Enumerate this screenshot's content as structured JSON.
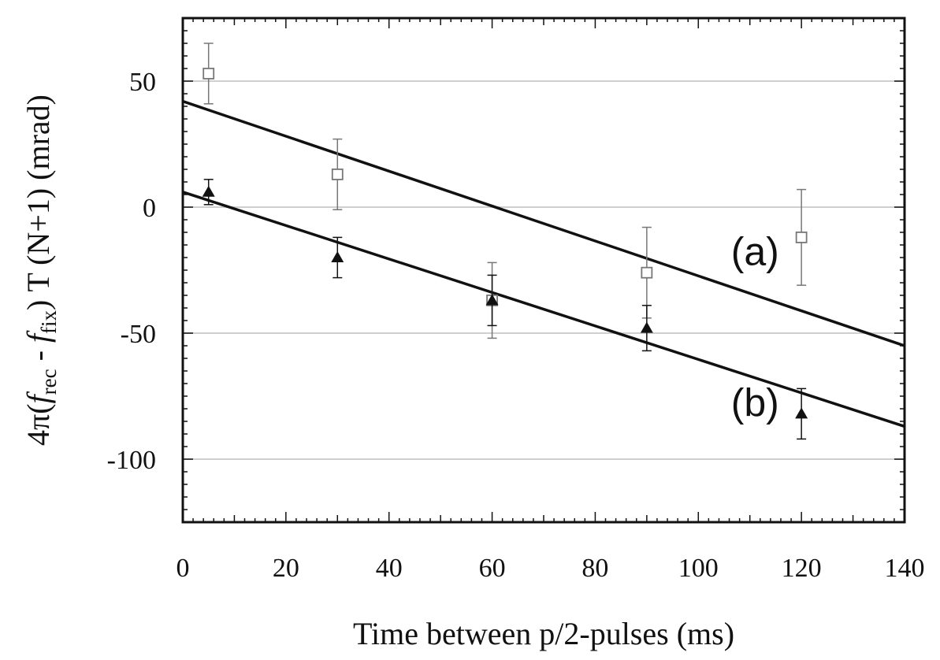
{
  "chart_data": {
    "type": "scatter",
    "xlabel": "Time between p/2-pulses (ms)",
    "ylabel": {
      "prefix": "4π(",
      "f1": "f",
      "sub1": "rec",
      "mid": " - ",
      "f2": "f",
      "sub2": "fix",
      "suffix": ") T (N+1)  (mrad)"
    },
    "xlim": [
      0,
      140
    ],
    "ylim": [
      -125,
      75
    ],
    "xticks": [
      0,
      20,
      40,
      60,
      80,
      100,
      120,
      140
    ],
    "yticks": [
      50,
      0,
      -50,
      -100
    ],
    "grid": "horizontal",
    "series": [
      {
        "marker": "open-square",
        "color": "#777777",
        "x": [
          5,
          30,
          60,
          90,
          120
        ],
        "y": [
          53,
          13,
          -37,
          -26,
          -12
        ],
        "err": [
          12,
          14,
          15,
          18,
          19
        ]
      },
      {
        "marker": "filled-triangle",
        "color": "#111111",
        "x": [
          5,
          30,
          60,
          90,
          120
        ],
        "y": [
          6,
          -20,
          -37,
          -48,
          -82
        ],
        "err": [
          5,
          8,
          10,
          9,
          10
        ]
      }
    ],
    "lines": [
      {
        "x": [
          0,
          140
        ],
        "y": [
          42,
          -55
        ]
      },
      {
        "x": [
          0,
          140
        ],
        "y": [
          6,
          -87
        ]
      }
    ],
    "annotations": [
      {
        "text": "(a)",
        "x": 111,
        "y": -23
      },
      {
        "text": "(b)",
        "x": 111,
        "y": -83
      }
    ]
  }
}
